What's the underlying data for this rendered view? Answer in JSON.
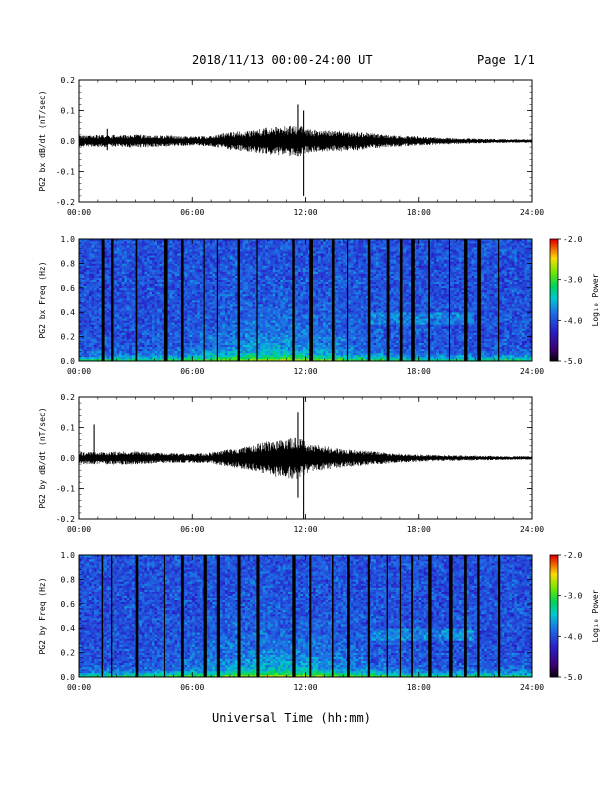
{
  "header": {
    "title": "2018/11/13  00:00-24:00 UT",
    "page": "Page 1/1"
  },
  "chart_data": [
    {
      "type": "line",
      "ylabel": "PG2 bx dB/dt (nT/sec)",
      "xlim": [
        0,
        24
      ],
      "ylim": [
        -0.2,
        0.2
      ],
      "yticks": [
        "-0.2",
        "-0.1",
        "0.0",
        "0.1",
        "0.2"
      ],
      "xticks": [
        "00:00",
        "06:00",
        "12:00",
        "18:00",
        "24:00"
      ],
      "envelope": {
        "hours": [
          0,
          1,
          2,
          3,
          4,
          5,
          6,
          7,
          8,
          9,
          10,
          11,
          11.5,
          11.9,
          12,
          13,
          14,
          15,
          16,
          17,
          18,
          19,
          20,
          21,
          22,
          23,
          24
        ],
        "amplitude": [
          0.018,
          0.02,
          0.02,
          0.022,
          0.02,
          0.018,
          0.015,
          0.018,
          0.03,
          0.035,
          0.045,
          0.05,
          0.05,
          0.05,
          0.04,
          0.035,
          0.035,
          0.03,
          0.022,
          0.018,
          0.015,
          0.012,
          0.01,
          0.008,
          0.007,
          0.006,
          0.006
        ]
      },
      "spikes": [
        {
          "hour": 1.5,
          "min": -0.03,
          "max": 0.04
        },
        {
          "hour": 11.6,
          "min": -0.05,
          "max": 0.12
        },
        {
          "hour": 11.9,
          "min": -0.18,
          "max": 0.1
        }
      ]
    },
    {
      "type": "heatmap",
      "ylabel": "PG2 bx Freq (Hz)",
      "xlim": [
        0,
        24
      ],
      "ylim": [
        0.0,
        1.0
      ],
      "yticks": [
        "0.0",
        "0.2",
        "0.4",
        "0.6",
        "0.8",
        "1.0"
      ],
      "xticks": [
        "00:00",
        "06:00",
        "12:00",
        "18:00",
        "24:00"
      ],
      "colorbar": {
        "label": "Log₁₀ Power",
        "range": [
          -5.0,
          -2.0
        ],
        "ticks": [
          "-2.0",
          "-3.0",
          "-4.0",
          "-5.0"
        ]
      },
      "gap_columns_hours": [
        1.2,
        1.7,
        3.0,
        4.5,
        5.4,
        6.6,
        7.3,
        8.4,
        9.4,
        11.3,
        12.2,
        13.4,
        14.2,
        15.3,
        16.3,
        17.0,
        17.6,
        18.5,
        19.6,
        20.4,
        21.1,
        22.2
      ]
    },
    {
      "type": "line",
      "ylabel": "PG2 by dB/dt (nT/sec)",
      "xlim": [
        0,
        24
      ],
      "ylim": [
        -0.2,
        0.2
      ],
      "yticks": [
        "-0.2",
        "-0.1",
        "0.0",
        "0.1",
        "0.2"
      ],
      "xticks": [
        "00:00",
        "06:00",
        "12:00",
        "18:00",
        "24:00"
      ],
      "envelope": {
        "hours": [
          0,
          1,
          2,
          3,
          4,
          5,
          6,
          7,
          8,
          9,
          10,
          11,
          11.5,
          11.9,
          12,
          13,
          14,
          15,
          16,
          17,
          18,
          19,
          20,
          21,
          22,
          23,
          24
        ],
        "amplitude": [
          0.02,
          0.02,
          0.022,
          0.022,
          0.018,
          0.016,
          0.015,
          0.018,
          0.03,
          0.04,
          0.055,
          0.07,
          0.07,
          0.06,
          0.05,
          0.04,
          0.03,
          0.025,
          0.02,
          0.015,
          0.012,
          0.01,
          0.009,
          0.008,
          0.007,
          0.006,
          0.006
        ]
      },
      "spikes": [
        {
          "hour": 0.8,
          "min": -0.02,
          "max": 0.11
        },
        {
          "hour": 11.6,
          "min": -0.13,
          "max": 0.15
        },
        {
          "hour": 11.9,
          "min": -0.2,
          "max": 0.2
        }
      ]
    },
    {
      "type": "heatmap",
      "ylabel": "PG2 by Freq (Hz)",
      "xlim": [
        0,
        24
      ],
      "ylim": [
        0.0,
        1.0
      ],
      "yticks": [
        "0.0",
        "0.2",
        "0.4",
        "0.6",
        "0.8",
        "1.0"
      ],
      "xticks": [
        "00:00",
        "06:00",
        "12:00",
        "18:00",
        "24:00"
      ],
      "colorbar": {
        "label": "Log₁₀ Power",
        "range": [
          -5.0,
          -2.0
        ],
        "ticks": [
          "-2.0",
          "-3.0",
          "-4.0",
          "-5.0"
        ]
      },
      "gap_columns_hours": [
        1.2,
        1.7,
        3.0,
        4.5,
        5.4,
        6.6,
        7.3,
        8.4,
        9.4,
        11.3,
        12.2,
        13.4,
        14.2,
        15.3,
        16.3,
        17.0,
        17.6,
        18.5,
        19.6,
        20.4,
        21.1,
        22.2
      ]
    }
  ],
  "footer": {
    "xlabel": "Universal Time (hh:mm)"
  }
}
